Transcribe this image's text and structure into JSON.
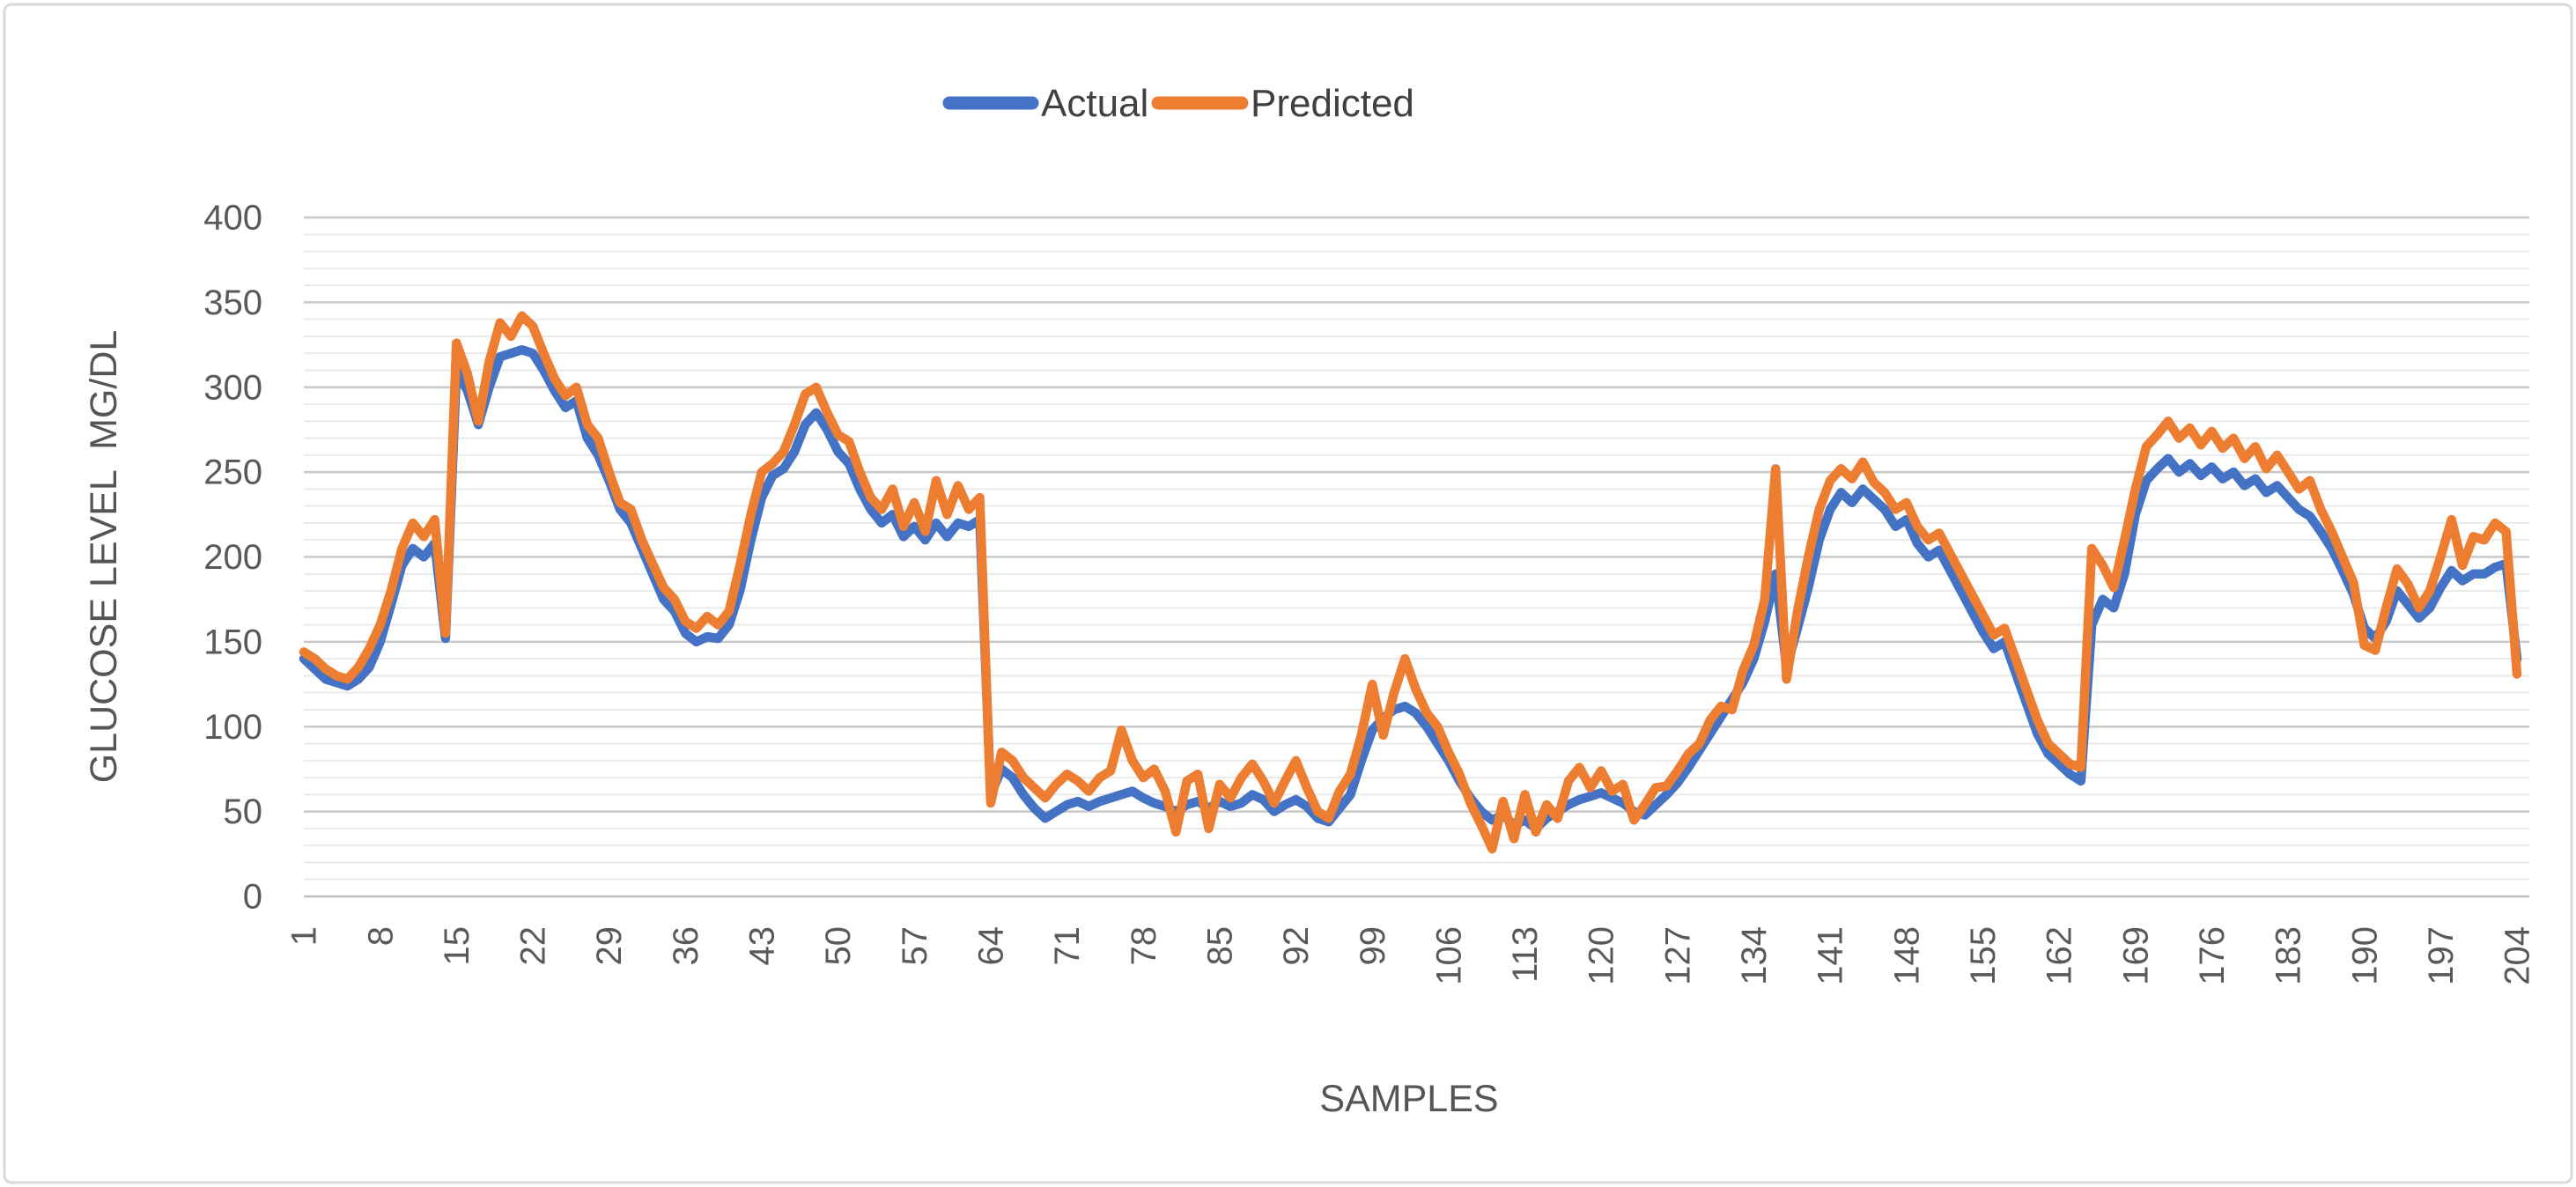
{
  "page": {
    "background_color": "#FFFFFF",
    "border_color": "#D9D9D9"
  },
  "legend": {
    "position": "top-center",
    "items": [
      {
        "label": "Actual",
        "color": "#4472C4"
      },
      {
        "label": "Predicted",
        "color": "#ED7D31"
      }
    ]
  },
  "chart_data": {
    "type": "line",
    "title": "",
    "xlabel": "SAMPLES",
    "ylabel": "GLUCOSE LEVEL  MG/DL",
    "ylim": [
      0,
      400
    ],
    "y_ticks": [
      0,
      50,
      100,
      150,
      200,
      250,
      300,
      350,
      400
    ],
    "x_tick_labels": [
      1,
      8,
      15,
      22,
      29,
      36,
      43,
      50,
      57,
      64,
      71,
      78,
      85,
      92,
      99,
      106,
      113,
      120,
      127,
      134,
      141,
      148,
      155,
      162,
      169,
      176,
      183,
      190,
      197,
      204
    ],
    "x_start": 1,
    "x_step": 1,
    "n_points": 204,
    "grid": {
      "major_step": 50,
      "minor_step": 10,
      "major_color": "#C9C9C9",
      "minor_color": "#E9E9E9",
      "zero_line_color": "#BFBFBF"
    },
    "legend_position": "top-center",
    "series": [
      {
        "name": "Actual",
        "color": "#4472C4",
        "values": [
          140,
          134,
          128,
          126,
          124,
          128,
          135,
          150,
          172,
          195,
          205,
          200,
          208,
          152,
          310,
          298,
          278,
          300,
          318,
          320,
          322,
          320,
          310,
          298,
          288,
          292,
          270,
          260,
          245,
          228,
          220,
          205,
          190,
          175,
          168,
          155,
          150,
          153,
          152,
          160,
          180,
          210,
          235,
          248,
          252,
          262,
          278,
          285,
          275,
          262,
          255,
          240,
          228,
          220,
          225,
          212,
          218,
          210,
          220,
          212,
          220,
          218,
          222,
          60,
          75,
          70,
          60,
          52,
          46,
          50,
          54,
          56,
          53,
          56,
          58,
          60,
          62,
          58,
          55,
          53,
          50,
          54,
          56,
          52,
          56,
          53,
          55,
          60,
          57,
          50,
          54,
          57,
          53,
          46,
          44,
          52,
          60,
          80,
          98,
          105,
          110,
          112,
          108,
          100,
          90,
          80,
          68,
          58,
          50,
          45,
          48,
          42,
          45,
          40,
          46,
          50,
          54,
          57,
          59,
          61,
          58,
          55,
          50,
          48,
          54,
          60,
          67,
          76,
          86,
          96,
          106,
          116,
          126,
          140,
          162,
          190,
          135,
          158,
          182,
          210,
          228,
          238,
          232,
          240,
          234,
          228,
          218,
          222,
          208,
          200,
          204,
          192,
          180,
          168,
          156,
          146,
          150,
          132,
          114,
          96,
          84,
          78,
          72,
          68,
          160,
          175,
          170,
          190,
          225,
          245,
          252,
          258,
          250,
          255,
          248,
          253,
          246,
          250,
          242,
          246,
          238,
          242,
          235,
          228,
          224,
          215,
          205,
          192,
          178,
          158,
          152,
          162,
          180,
          172,
          164,
          170,
          182,
          192,
          186,
          190,
          190,
          194,
          196,
          140
        ]
      },
      {
        "name": "Predicted",
        "color": "#ED7D31",
        "values": [
          144,
          140,
          134,
          130,
          128,
          135,
          146,
          160,
          180,
          205,
          220,
          212,
          222,
          155,
          326,
          308,
          280,
          315,
          338,
          330,
          342,
          336,
          320,
          305,
          295,
          300,
          278,
          270,
          250,
          232,
          228,
          210,
          196,
          182,
          175,
          162,
          158,
          165,
          160,
          168,
          195,
          225,
          250,
          255,
          262,
          278,
          296,
          300,
          285,
          272,
          268,
          250,
          235,
          228,
          240,
          218,
          232,
          215,
          245,
          225,
          242,
          228,
          235,
          55,
          85,
          80,
          70,
          64,
          58,
          66,
          72,
          68,
          62,
          70,
          74,
          98,
          80,
          70,
          75,
          62,
          38,
          68,
          72,
          40,
          66,
          58,
          70,
          78,
          68,
          55,
          68,
          80,
          64,
          50,
          46,
          62,
          72,
          95,
          125,
          95,
          120,
          140,
          122,
          108,
          100,
          85,
          72,
          55,
          42,
          28,
          56,
          34,
          60,
          38,
          54,
          46,
          68,
          76,
          64,
          74,
          62,
          66,
          45,
          54,
          64,
          65,
          74,
          84,
          90,
          104,
          112,
          110,
          133,
          148,
          175,
          252,
          128,
          168,
          200,
          228,
          245,
          252,
          246,
          256,
          244,
          238,
          228,
          232,
          218,
          210,
          214,
          202,
          190,
          178,
          166,
          154,
          158,
          140,
          122,
          104,
          90,
          84,
          78,
          76,
          205,
          195,
          182,
          210,
          240,
          265,
          272,
          280,
          270,
          276,
          266,
          274,
          264,
          270,
          258,
          265,
          252,
          260,
          250,
          240,
          245,
          228,
          215,
          200,
          185,
          148,
          145,
          170,
          193,
          184,
          170,
          180,
          200,
          222,
          195,
          212,
          210,
          220,
          215,
          131
        ]
      }
    ]
  }
}
